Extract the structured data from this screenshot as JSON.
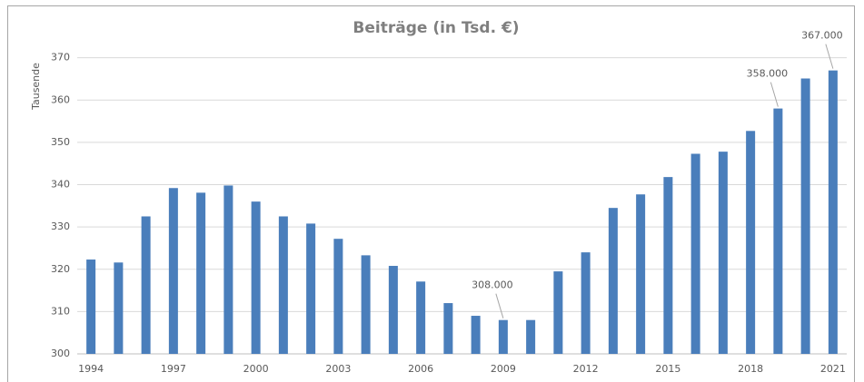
{
  "chart_data": {
    "type": "bar",
    "title": "Beiträge (in Tsd. €)",
    "y_label": "Tausende",
    "categories": [
      "1994",
      null,
      null,
      "1997",
      null,
      null,
      "2000",
      null,
      null,
      "2003",
      null,
      null,
      "2006",
      null,
      null,
      "2009",
      null,
      null,
      "2012",
      null,
      null,
      "2015",
      null,
      null,
      "2018",
      null,
      null,
      "2021"
    ],
    "values": [
      322.3,
      321.6,
      332.5,
      339.2,
      338.1,
      339.8,
      336,
      332.5,
      330.8,
      327.2,
      323.3,
      320.8,
      317.1,
      312,
      309,
      308,
      308,
      319.5,
      324,
      334.5,
      337.7,
      341.8,
      347.3,
      347.8,
      352.7,
      358,
      365.1,
      367
    ],
    "value_labels": [
      null,
      null,
      null,
      null,
      null,
      null,
      null,
      null,
      null,
      null,
      null,
      null,
      null,
      null,
      null,
      "308.000",
      null,
      null,
      null,
      null,
      null,
      null,
      null,
      null,
      null,
      "358.000",
      null,
      "367.000"
    ],
    "color": "#4a7ebb",
    "ylim": [
      300,
      374
    ],
    "yticks": [
      300,
      310,
      320,
      330,
      340,
      350,
      360,
      370
    ],
    "grid": true
  }
}
